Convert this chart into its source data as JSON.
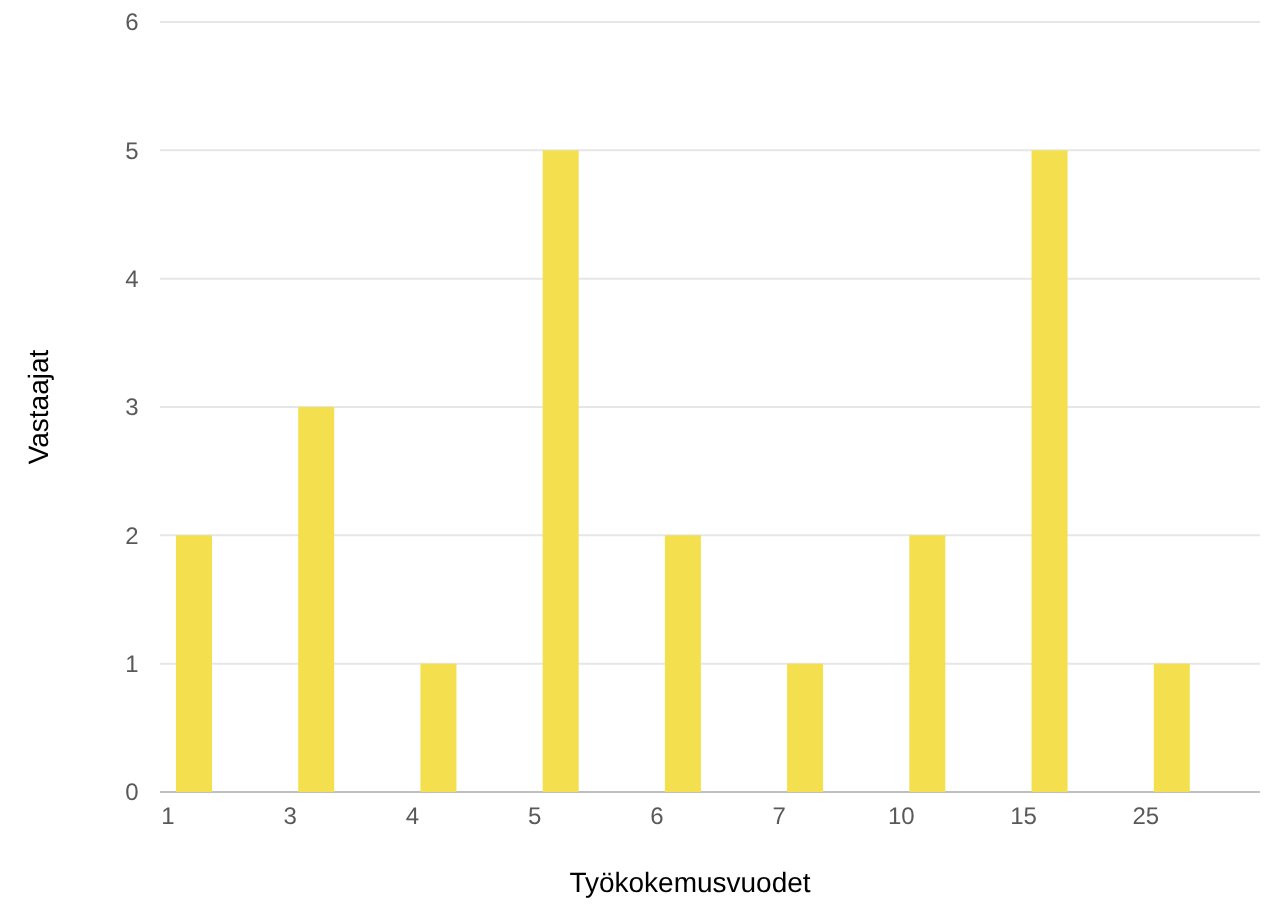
{
  "chart_data": {
    "type": "bar",
    "xlabel": "Työkokemusvuodet",
    "ylabel": "Vastaajat",
    "categories": [
      "1",
      "3",
      "4",
      "5",
      "6",
      "7",
      "10",
      "15",
      "25"
    ],
    "values": [
      2,
      3,
      1,
      5,
      2,
      1,
      2,
      5,
      1
    ],
    "color": "#f4df4f",
    "ylim": [
      0,
      6
    ],
    "yticks": [
      0,
      1,
      2,
      3,
      4,
      5,
      6
    ],
    "grid": "y"
  }
}
